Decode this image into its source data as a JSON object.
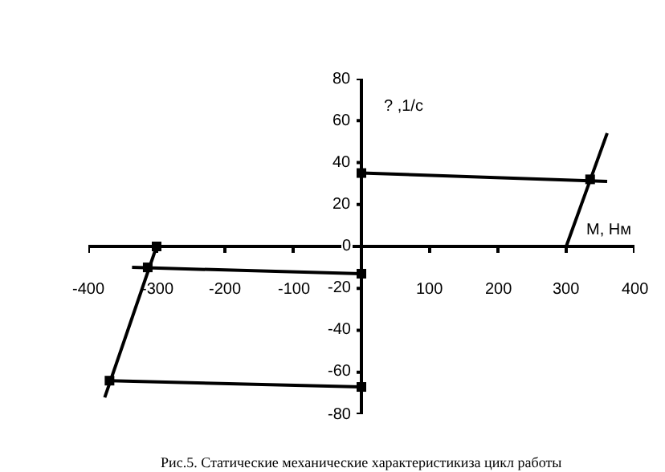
{
  "chart_data": {
    "type": "line",
    "xlabel": "M, Нм",
    "ylabel": "? ,1/c",
    "annotations": [
      "Рис.5. Статические механические характеристикиза цикл работы"
    ],
    "xlim": [
      -400,
      400
    ],
    "xticks": [
      -400,
      -300,
      -200,
      -100,
      {
        "value": 0,
        "label": null
      },
      100,
      200,
      300,
      400
    ],
    "ylim": [
      -80,
      80
    ],
    "yticks": [
      -80,
      -60,
      -40,
      -20,
      0,
      20,
      40,
      60,
      80
    ],
    "marker": "none",
    "line_style": "solid",
    "series": [
      {
        "color": "#000000",
        "x": [
          0,
          360
        ],
        "values": [
          35,
          31
        ]
      },
      {
        "color": "#000000",
        "x": [
          300,
          360
        ],
        "values": [
          0,
          54
        ]
      },
      {
        "color": "#000000",
        "x": [
          -336,
          0
        ],
        "values": [
          -10,
          -13
        ]
      },
      {
        "color": "#000000",
        "x": [
          -300,
          -376
        ],
        "values": [
          0,
          -72
        ]
      },
      {
        "color": "#000000",
        "x": [
          -369,
          0
        ],
        "values": [
          -64,
          -67
        ]
      },
      {
        "type": "scatter",
        "marker": "square",
        "color": "#000000",
        "x": [
          0,
          335,
          -313,
          0,
          -300,
          -369,
          0
        ],
        "values": [
          35,
          32,
          -10,
          -13,
          0,
          -64,
          -67
        ]
      }
    ]
  }
}
